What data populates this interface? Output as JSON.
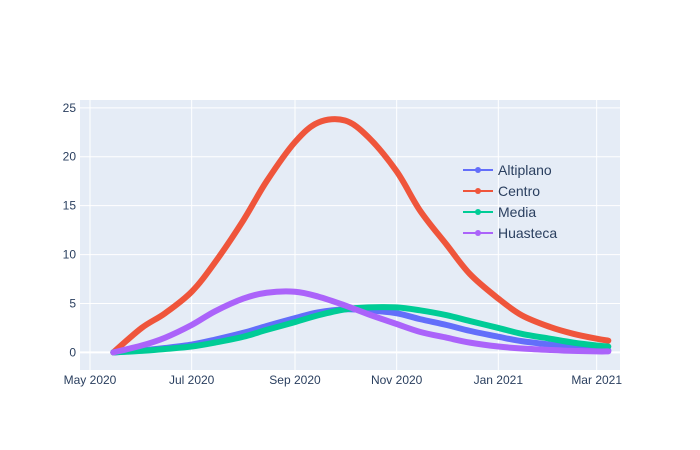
{
  "chart_data": {
    "type": "line",
    "title": "",
    "xlabel": "",
    "ylabel": "",
    "x_ticks": [
      "May 2020",
      "Jul 2020",
      "Sep 2020",
      "Nov 2020",
      "Jan 2021",
      "Mar 2021"
    ],
    "y_ticks": [
      "0",
      "5",
      "10",
      "15",
      "20",
      "25"
    ],
    "xlim": [
      "2020-04-25",
      "2021-03-15"
    ],
    "ylim": [
      -1.8,
      25.8
    ],
    "grid": true,
    "legend_position": "right-inside",
    "background": "#e5ecf6",
    "x": [
      "2020-05-15",
      "2020-06-01",
      "2020-06-15",
      "2020-07-01",
      "2020-07-15",
      "2020-08-01",
      "2020-08-15",
      "2020-09-01",
      "2020-09-15",
      "2020-10-01",
      "2020-10-15",
      "2020-11-01",
      "2020-11-15",
      "2020-12-01",
      "2020-12-15",
      "2021-01-01",
      "2021-01-15",
      "2021-02-01",
      "2021-02-15",
      "2021-03-01",
      "2021-03-08"
    ],
    "series": [
      {
        "name": "Altiplano",
        "color": "#636efa",
        "values": [
          0,
          0.2,
          0.45,
          0.8,
          1.3,
          2.0,
          2.7,
          3.5,
          4.1,
          4.4,
          4.3,
          4.0,
          3.4,
          2.8,
          2.2,
          1.6,
          1.15,
          0.8,
          0.5,
          0.3,
          0.2
        ]
      },
      {
        "name": "Centro",
        "color": "#ef553b",
        "values": [
          0,
          2.5,
          4.0,
          6.2,
          9.2,
          13.5,
          17.5,
          21.5,
          23.5,
          23.7,
          22.0,
          18.5,
          14.5,
          11.0,
          8.0,
          5.5,
          3.8,
          2.6,
          1.9,
          1.4,
          1.2
        ]
      },
      {
        "name": "Media",
        "color": "#00cc96",
        "values": [
          0,
          0.15,
          0.35,
          0.6,
          1.0,
          1.6,
          2.3,
          3.1,
          3.8,
          4.4,
          4.6,
          4.6,
          4.3,
          3.8,
          3.2,
          2.5,
          1.9,
          1.4,
          1.0,
          0.7,
          0.6
        ]
      },
      {
        "name": "Huasteca",
        "color": "#ab63fa",
        "values": [
          0,
          0.7,
          1.5,
          2.8,
          4.2,
          5.5,
          6.1,
          6.2,
          5.7,
          4.8,
          3.9,
          2.9,
          2.1,
          1.5,
          1.0,
          0.6,
          0.4,
          0.25,
          0.15,
          0.1,
          0.1
        ]
      }
    ]
  }
}
